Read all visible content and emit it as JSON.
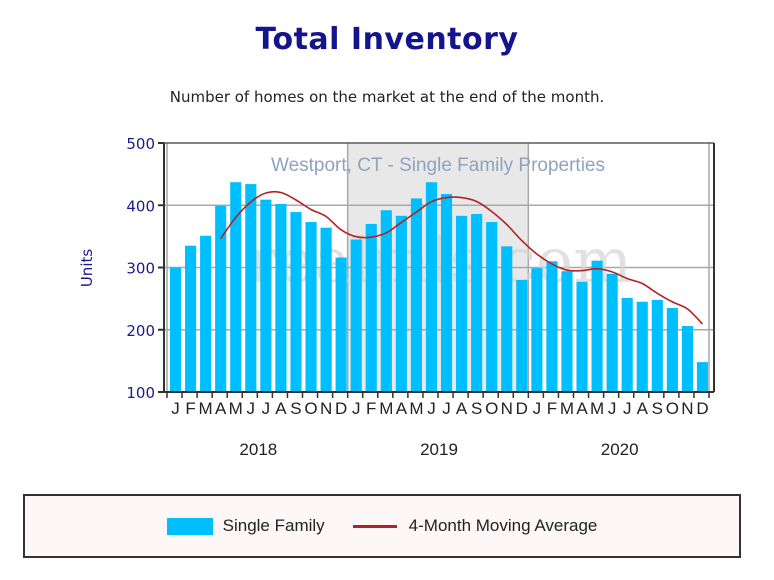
{
  "title": "Total Inventory",
  "subtitle": "Number of homes on the market at the end of the month.",
  "colors": {
    "bars": "#00bfff",
    "moving_average": "#b22222",
    "title": "#14148c",
    "axis_labels": "#1a1a8c",
    "band": "#e8e8e8"
  },
  "chart_data": {
    "type": "bar",
    "title": "Total Inventory",
    "subtitle": "Number of homes on the market at the end of the month.",
    "annotation": "Westport, CT - Single Family Properties",
    "watermark": "realmls.com",
    "xlabel": "",
    "ylabel": "Units",
    "ylim": [
      100,
      500
    ],
    "yticks": [
      100,
      200,
      300,
      400,
      500
    ],
    "grid": true,
    "legend_position": "bottom",
    "month_labels": [
      "J",
      "F",
      "M",
      "A",
      "M",
      "J",
      "J",
      "A",
      "S",
      "O",
      "N",
      "D",
      "J",
      "F",
      "M",
      "A",
      "M",
      "J",
      "J",
      "A",
      "S",
      "O",
      "N",
      "D",
      "J",
      "F",
      "M",
      "A",
      "M",
      "J",
      "J",
      "A",
      "S",
      "O",
      "N",
      "D"
    ],
    "years": [
      "2018",
      "2019",
      "2020"
    ],
    "shaded_year": "2019",
    "series": [
      {
        "name": "Single Family",
        "type": "bar",
        "values": [
          300,
          335,
          351,
          399,
          437,
          434,
          409,
          402,
          389,
          373,
          364,
          316,
          345,
          370,
          392,
          383,
          411,
          437,
          418,
          383,
          386,
          373,
          334,
          280,
          299,
          310,
          294,
          277,
          311,
          290,
          251,
          245,
          248,
          235,
          206,
          148
        ]
      },
      {
        "name": "4-Month Moving Average",
        "type": "line",
        "window": 4,
        "start_index": 3
      }
    ]
  },
  "legend": {
    "items": [
      {
        "label": "Single Family"
      },
      {
        "label": "4-Month Moving Average"
      }
    ]
  }
}
